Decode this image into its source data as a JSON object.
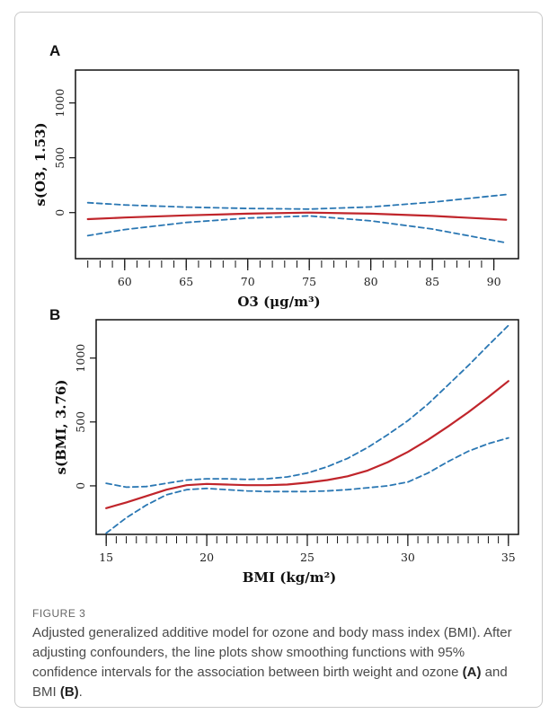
{
  "figure": {
    "label": "FIGURE 3",
    "caption": {
      "text_before_a": "Adjusted generalized additive model for ozone and body mass index (BMI). After adjusting confounders, the line plots show smoothing functions with 95% confidence intervals for the association between birth weight and ozone ",
      "ref_a": "(A)",
      "text_between": " and BMI ",
      "ref_b": "(B)",
      "text_after": "."
    }
  },
  "colors": {
    "estimate": "#c0252b",
    "confidence": "#2a77b3",
    "axis": "#111111"
  },
  "chart_data": [
    {
      "panel": "A",
      "type": "line",
      "title": "",
      "xlabel": "O3 (μg/m³)",
      "ylabel": "s(O3, 1.53)",
      "xlim": [
        56,
        92
      ],
      "ylim": [
        -420,
        1300
      ],
      "xticks": [
        60,
        65,
        70,
        75,
        80,
        85,
        90
      ],
      "yticks": [
        0,
        500,
        1000
      ],
      "grid": false,
      "rug": [
        57,
        58,
        59,
        60,
        61,
        62,
        63,
        64,
        65,
        66,
        67,
        68,
        69,
        70,
        71,
        72,
        73,
        74,
        75,
        76,
        77,
        78,
        79,
        80,
        81,
        82,
        83,
        84,
        85,
        86,
        87,
        88,
        89,
        90
      ],
      "series": [
        {
          "role": "estimate",
          "style": "solid",
          "x": [
            57,
            60,
            65,
            70,
            75,
            80,
            85,
            91
          ],
          "y": [
            -60,
            -45,
            -25,
            -10,
            0,
            -10,
            -30,
            -65
          ]
        },
        {
          "role": "upper",
          "style": "dashed",
          "x": [
            57,
            60,
            65,
            70,
            75,
            80,
            85,
            91
          ],
          "y": [
            90,
            70,
            50,
            38,
            32,
            52,
            95,
            165
          ]
        },
        {
          "role": "lower",
          "style": "dashed",
          "x": [
            57,
            60,
            65,
            70,
            75,
            80,
            85,
            91
          ],
          "y": [
            -210,
            -155,
            -90,
            -50,
            -30,
            -75,
            -150,
            -275
          ]
        }
      ]
    },
    {
      "panel": "B",
      "type": "line",
      "title": "",
      "xlabel": "BMI (kg/m²)",
      "ylabel": "s(BMI, 3.76)",
      "xlim": [
        14.5,
        35.5
      ],
      "ylim": [
        -380,
        1300
      ],
      "xticks": [
        15,
        20,
        25,
        30,
        35
      ],
      "yticks": [
        0,
        500,
        1000
      ],
      "grid": false,
      "rug": [
        15,
        15.5,
        16,
        16.5,
        17,
        17.5,
        18,
        18.5,
        19,
        19.5,
        20,
        20.5,
        21,
        21.5,
        22,
        22.5,
        23,
        23.5,
        24,
        24.5,
        25,
        25.5,
        26,
        26.5,
        27,
        27.5,
        28,
        28.5,
        29,
        29.5,
        30,
        30.5,
        31,
        31.5,
        32,
        32.5,
        33,
        33.5,
        34,
        34.5,
        35
      ],
      "series": [
        {
          "role": "estimate",
          "style": "solid",
          "x": [
            15,
            16,
            17,
            18,
            19,
            20,
            21,
            22,
            23,
            24,
            25,
            26,
            27,
            28,
            29,
            30,
            31,
            32,
            33,
            34,
            35
          ],
          "y": [
            -175,
            -130,
            -80,
            -30,
            5,
            15,
            10,
            5,
            5,
            10,
            25,
            45,
            75,
            120,
            185,
            265,
            360,
            465,
            575,
            695,
            820
          ]
        },
        {
          "role": "upper",
          "style": "dashed",
          "x": [
            15,
            16,
            17,
            18,
            19,
            20,
            21,
            22,
            23,
            24,
            25,
            26,
            27,
            28,
            29,
            30,
            31,
            32,
            33,
            34,
            35
          ],
          "y": [
            20,
            -10,
            -5,
            20,
            45,
            55,
            55,
            50,
            55,
            70,
            100,
            150,
            215,
            300,
            400,
            510,
            640,
            790,
            940,
            1100,
            1255
          ]
        },
        {
          "role": "lower",
          "style": "dashed",
          "x": [
            15,
            16,
            17,
            18,
            19,
            20,
            21,
            22,
            23,
            24,
            25,
            26,
            27,
            28,
            29,
            30,
            31,
            32,
            33,
            34,
            35
          ],
          "y": [
            -370,
            -250,
            -150,
            -70,
            -30,
            -20,
            -30,
            -40,
            -45,
            -45,
            -45,
            -40,
            -30,
            -15,
            0,
            30,
            100,
            190,
            270,
            330,
            375
          ]
        }
      ]
    }
  ]
}
